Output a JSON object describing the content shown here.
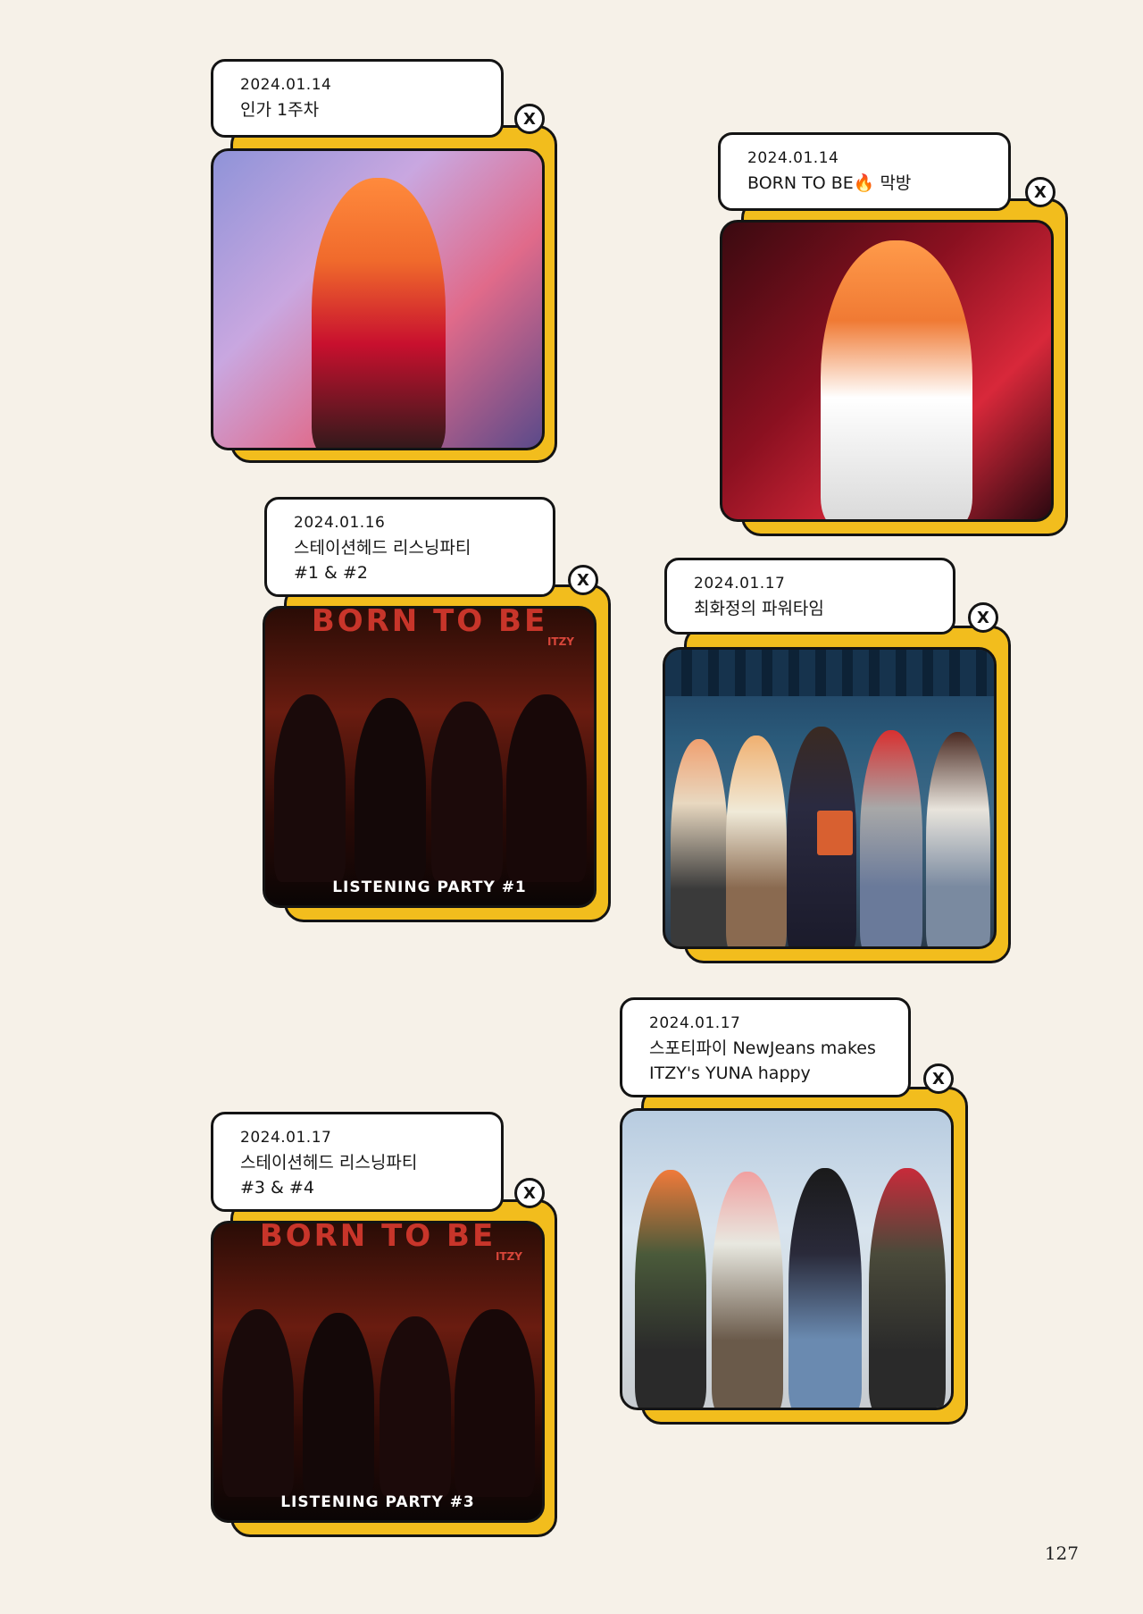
{
  "colors": {
    "page_background": "#f6f1e8",
    "card_frame": "#f2bd1d",
    "outline": "#141414",
    "label_background": "#ffffff"
  },
  "close_icon_label": "X",
  "cards": [
    {
      "date": "2024.01.14",
      "caption": "인가 1주차",
      "photo_description": "stage-performance-photo"
    },
    {
      "date": "2024.01.14",
      "caption": "BORN TO BE🔥 막방",
      "photo_description": "stage-performance-photo"
    },
    {
      "date": "2024.01.16",
      "caption": "스테이션헤드 리스닝파티",
      "caption2": "#1 & #2",
      "poster_title": "BORN TO BE",
      "poster_artist": "ITZY",
      "poster_banner": "LISTENING PARTY #1"
    },
    {
      "date": "2024.01.17",
      "caption": "최화정의 파워타임",
      "photo_description": "radio-studio-group-photo"
    },
    {
      "date": "2024.01.17",
      "caption": "스포티파이 NewJeans makes",
      "caption2": "ITZY's YUNA happy",
      "photo_description": "group-photo"
    },
    {
      "date": "2024.01.17",
      "caption": "스테이션헤드 리스닝파티",
      "caption2": "#3 & #4",
      "poster_title": "BORN TO BE",
      "poster_artist": "ITZY",
      "poster_banner": "LISTENING PARTY #3"
    }
  ],
  "page_number": "127"
}
